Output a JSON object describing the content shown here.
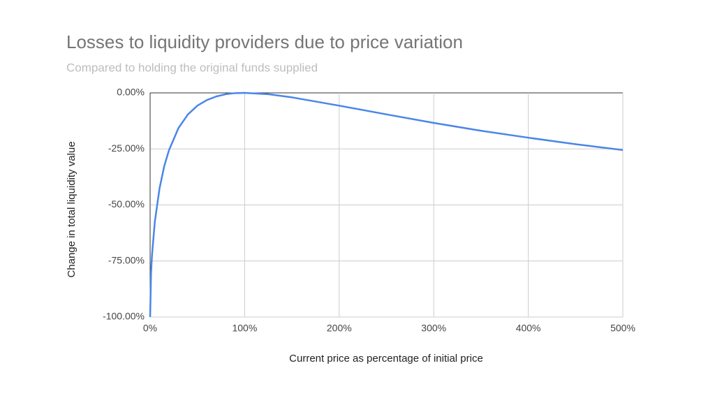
{
  "chart_data": {
    "type": "line",
    "title": "Losses to liquidity providers due to price variation",
    "subtitle": "Compared to holding the original funds supplied",
    "x_label": "Current price as percentage of initial price",
    "y_label": "Change in total liquidity value",
    "x": [
      0,
      1,
      2,
      5,
      10,
      15,
      20,
      30,
      40,
      50,
      60,
      70,
      80,
      90,
      100,
      125,
      150,
      200,
      250,
      300,
      350,
      400,
      450,
      500
    ],
    "series": [
      {
        "name": "Change in total liquidity value",
        "color": "#4a86e8",
        "values": [
          -100,
          -80.2,
          -72.3,
          -57.4,
          -42.5,
          -32.6,
          -25.5,
          -15.7,
          -9.6,
          -5.7,
          -3.2,
          -1.6,
          -0.6,
          -0.1,
          0,
          -0.6,
          -2.0,
          -5.7,
          -9.6,
          -13.4,
          -16.9,
          -20,
          -22.9,
          -25.5
        ]
      }
    ],
    "xlim": [
      0,
      500
    ],
    "xticks": [
      {
        "value": 0,
        "label": "0%"
      },
      {
        "value": 100,
        "label": "100%"
      },
      {
        "value": 200,
        "label": "200%"
      },
      {
        "value": 300,
        "label": "300%"
      },
      {
        "value": 400,
        "label": "400%"
      },
      {
        "value": 500,
        "label": "500%"
      }
    ],
    "ylim": [
      -100,
      0
    ],
    "yticks": [
      {
        "value": 0,
        "label": "0.00%"
      },
      {
        "value": -25,
        "label": "-25.00%"
      },
      {
        "value": -50,
        "label": "-50.00%"
      },
      {
        "value": -75,
        "label": "-75.00%"
      },
      {
        "value": -100,
        "label": "-100.00%"
      }
    ],
    "grid": true
  }
}
